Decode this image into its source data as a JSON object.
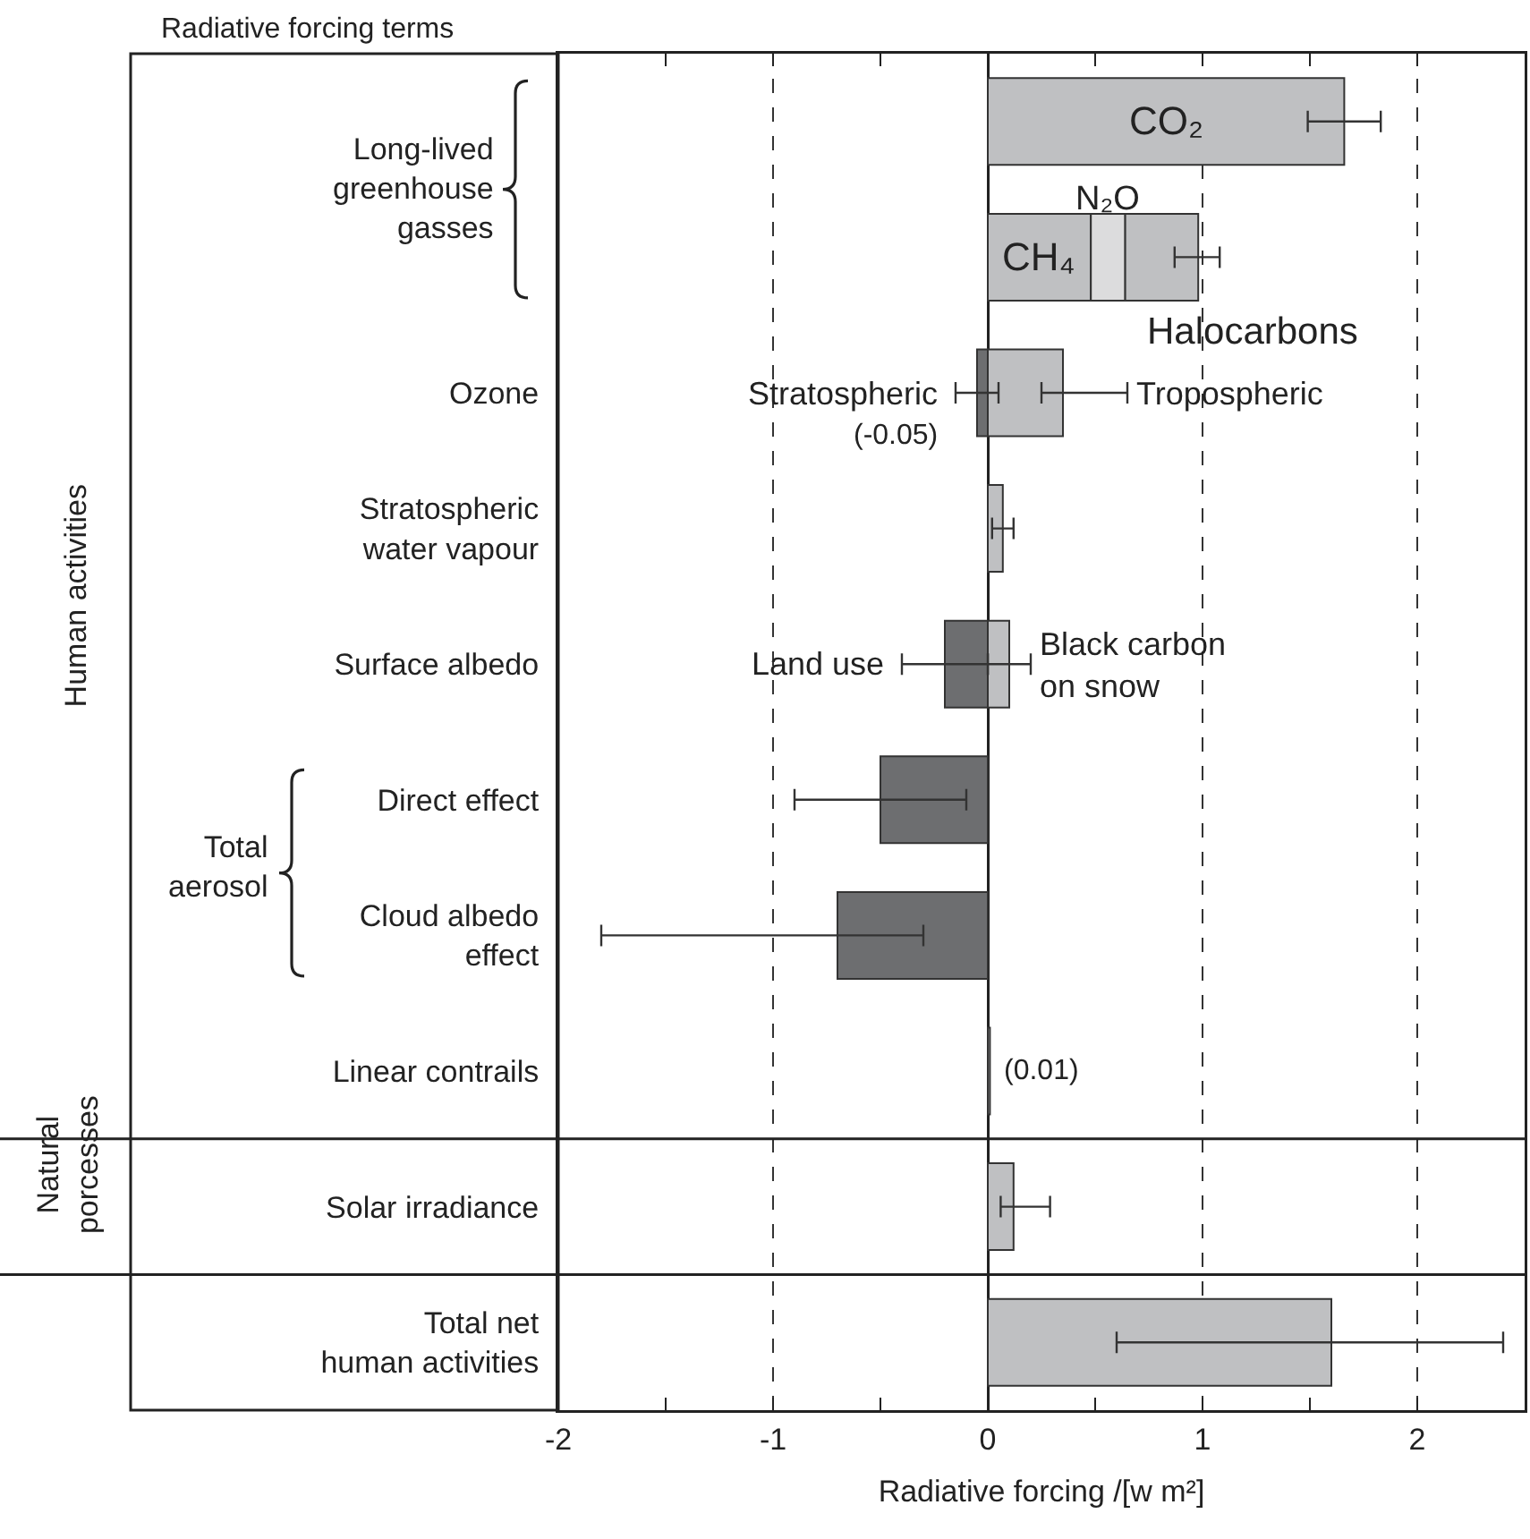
{
  "chart_data": {
    "type": "bar",
    "orientation": "horizontal",
    "stacked": true,
    "grid": "x",
    "ylabel": "Radiative forcing terms",
    "xlabel": "Radiative forcing /[w m²]",
    "categories": [
      null,
      null,
      "Ozone",
      "Stratospheric\nwater vapour",
      "Surface albedo",
      "Direct effect",
      "Cloud albedo\neffect",
      "Linear contrails",
      "Solar irradiance",
      "Total net\nhuman activities"
    ],
    "xlim": [
      -2,
      2.5
    ],
    "xticks": [
      -2,
      {
        "value": -1.5,
        "label": null
      },
      -1,
      {
        "value": -0.5,
        "label": null
      },
      0,
      {
        "value": 0.5,
        "label": null
      },
      1,
      {
        "value": 1.5,
        "label": null
      },
      2
    ],
    "series": [
      {
        "name": "CO₂",
        "color": "#bfc0c2",
        "values": [
          1.66,
          null,
          null,
          null,
          null,
          null,
          null,
          null,
          null,
          null
        ],
        "errors": [
          [
            1.49,
            1.83
          ],
          null,
          null,
          null,
          null,
          null,
          null,
          null,
          null,
          null
        ]
      },
      {
        "name": "CH₄",
        "color": "#bfc0c2",
        "values": [
          null,
          0.48,
          null,
          null,
          null,
          null,
          null,
          null,
          null,
          null
        ]
      },
      {
        "name": "N₂O",
        "color": "#dcdcdd",
        "values": [
          null,
          0.16,
          null,
          null,
          null,
          null,
          null,
          null,
          null,
          null
        ]
      },
      {
        "name": "Halocarbons",
        "color": "#bfc0c2",
        "values": [
          null,
          0.34,
          null,
          null,
          null,
          null,
          null,
          null,
          null,
          null
        ],
        "errors": [
          null,
          [
            0.87,
            1.08
          ],
          null,
          null,
          null,
          null,
          null,
          null,
          null,
          null
        ]
      },
      {
        "name": "Tropospheric",
        "color": "#bfc0c2",
        "values": [
          null,
          null,
          0.35,
          null,
          null,
          null,
          null,
          null,
          null,
          null
        ],
        "errors": [
          null,
          null,
          [
            0.25,
            0.65
          ],
          null,
          null,
          null,
          null,
          null,
          null,
          null
        ]
      },
      {
        "name": "Stratospheric",
        "color": "#6d6e70",
        "values": [
          null,
          null,
          -0.05,
          null,
          null,
          null,
          null,
          null,
          null,
          null
        ],
        "errors": [
          null,
          null,
          [
            -0.15,
            0.05
          ],
          null,
          null,
          null,
          null,
          null,
          null,
          null
        ],
        "value_labels": [
          null,
          null,
          "(-0.05)",
          null,
          null,
          null,
          null,
          null,
          null,
          null
        ]
      },
      {
        "name": "Black carbon\non snow",
        "color": "#bfc0c2",
        "values": [
          null,
          null,
          null,
          null,
          0.1,
          null,
          null,
          null,
          null,
          null
        ],
        "errors": [
          null,
          null,
          null,
          null,
          [
            0.0,
            0.2
          ],
          null,
          null,
          null,
          null,
          null
        ]
      },
      {
        "name": "Land use",
        "color": "#6d6e70",
        "values": [
          null,
          null,
          null,
          null,
          -0.2,
          null,
          null,
          null,
          null,
          null
        ],
        "errors": [
          null,
          null,
          null,
          null,
          [
            -0.4,
            0.0
          ],
          null,
          null,
          null,
          null,
          null
        ]
      },
      {
        "color": "#bfc0c2",
        "values": [
          null,
          null,
          null,
          0.07,
          null,
          null,
          null,
          0.01,
          0.12,
          1.6
        ],
        "errors": [
          null,
          null,
          null,
          [
            0.02,
            0.12
          ],
          null,
          null,
          null,
          null,
          [
            0.06,
            0.29
          ],
          [
            0.6,
            2.4
          ]
        ],
        "value_labels": [
          null,
          null,
          null,
          null,
          null,
          null,
          null,
          "(0.01)",
          null,
          null
        ]
      },
      {
        "color": "#6d6e70",
        "values": [
          null,
          null,
          null,
          null,
          null,
          -0.5,
          -0.7,
          null,
          null,
          null
        ],
        "errors": [
          null,
          null,
          null,
          null,
          null,
          [
            -0.9,
            -0.1
          ],
          [
            -1.8,
            -0.3
          ],
          null,
          null,
          null
        ]
      }
    ],
    "annotations": [
      "Long-lived\ngreenhouse\ngasses",
      "Total\naerosol",
      "Human activities",
      "Natural\nporcesses"
    ]
  }
}
